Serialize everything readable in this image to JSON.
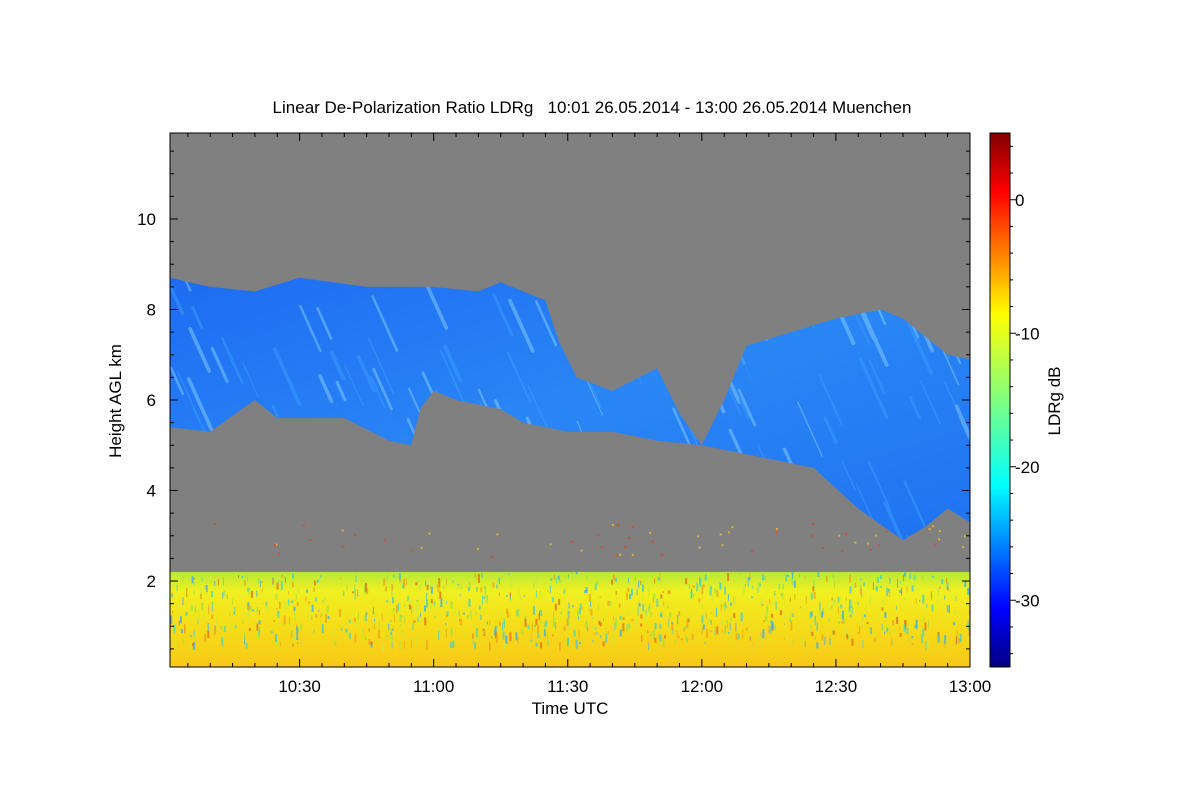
{
  "chart_data": {
    "type": "heatmap",
    "title": "Linear De-Polarization Ratio LDRg   10:01 26.05.2014 - 13:00 26.05.2014 Muenchen",
    "xlabel": "Time UTC",
    "ylabel": "Height AGL km",
    "xlim": [
      "10:01",
      "13:00"
    ],
    "ylim": [
      0.1,
      11.9
    ],
    "x_ticks": [
      {
        "value": "10:30",
        "label": "10:30"
      },
      {
        "value": "11:00",
        "label": "11:00"
      },
      {
        "value": "11:30",
        "label": "11:30"
      },
      {
        "value": "12:00",
        "label": "12:00"
      },
      {
        "value": "12:30",
        "label": "12:30"
      },
      {
        "value": "13:00",
        "label": "13:00"
      }
    ],
    "y_ticks": [
      {
        "value": 2,
        "label": "2"
      },
      {
        "value": 4,
        "label": "4"
      },
      {
        "value": 6,
        "label": "6"
      },
      {
        "value": 8,
        "label": "8"
      },
      {
        "value": 10,
        "label": "10"
      }
    ],
    "colorbar": {
      "label": "LDRg dB",
      "range": [
        -35,
        5
      ],
      "ticks": [
        {
          "value": 0,
          "label": "0"
        },
        {
          "value": -10,
          "label": "-10"
        },
        {
          "value": -20,
          "label": "-20"
        },
        {
          "value": -30,
          "label": "-30"
        }
      ]
    },
    "background_color": "#808080",
    "regions": [
      {
        "name": "ice cloud layer",
        "ldr_db_approx": -26,
        "boundary": [
          [
            "10:01",
            5.4
          ],
          [
            "10:01",
            8.7
          ],
          [
            "10:10",
            8.5
          ],
          [
            "10:20",
            8.4
          ],
          [
            "10:30",
            8.7
          ],
          [
            "10:45",
            8.5
          ],
          [
            "11:00",
            8.5
          ],
          [
            "11:10",
            8.4
          ],
          [
            "11:15",
            8.6
          ],
          [
            "11:25",
            8.2
          ],
          [
            "11:28",
            7.3
          ],
          [
            "11:32",
            6.5
          ],
          [
            "11:40",
            6.2
          ],
          [
            "11:50",
            6.7
          ],
          [
            "11:55",
            5.7
          ],
          [
            "12:00",
            5.0
          ],
          [
            "12:05",
            6.0
          ],
          [
            "12:10",
            7.2
          ],
          [
            "12:20",
            7.5
          ],
          [
            "12:30",
            7.8
          ],
          [
            "12:40",
            8.0
          ],
          [
            "12:45",
            7.8
          ],
          [
            "12:55",
            7.0
          ],
          [
            "13:00",
            6.9
          ],
          [
            "13:00",
            3.3
          ],
          [
            "12:55",
            3.6
          ],
          [
            "12:50",
            3.2
          ],
          [
            "12:45",
            2.9
          ],
          [
            "12:35",
            3.6
          ],
          [
            "12:25",
            4.5
          ],
          [
            "12:15",
            4.7
          ],
          [
            "12:05",
            4.9
          ],
          [
            "12:00",
            5.0
          ],
          [
            "11:50",
            5.1
          ],
          [
            "11:40",
            5.3
          ],
          [
            "11:30",
            5.3
          ],
          [
            "11:20",
            5.5
          ],
          [
            "11:15",
            5.8
          ],
          [
            "11:05",
            6.0
          ],
          [
            "11:00",
            6.2
          ],
          [
            "10:57",
            5.8
          ],
          [
            "10:55",
            5.0
          ],
          [
            "10:50",
            5.1
          ],
          [
            "10:40",
            5.6
          ],
          [
            "10:25",
            5.6
          ],
          [
            "10:20",
            6.0
          ],
          [
            "10:10",
            5.3
          ]
        ]
      },
      {
        "name": "boundary layer",
        "ldr_db_approx": -10,
        "top_km": 2.2,
        "bottom_km": 0.1,
        "time_range": [
          "10:01",
          "13:00"
        ]
      }
    ]
  }
}
